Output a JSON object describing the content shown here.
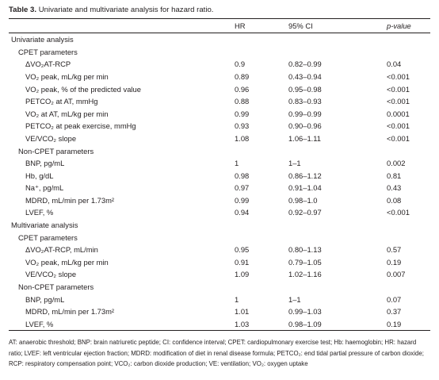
{
  "caption": {
    "label": "Table 3.",
    "text": "Univariate and multivariate analysis for hazard ratio."
  },
  "columns": [
    "",
    "HR",
    "95% CI",
    "p-value"
  ],
  "rows": [
    {
      "kind": "section",
      "name": "Univariate analysis"
    },
    {
      "kind": "group",
      "name": "CPET parameters"
    },
    {
      "kind": "item",
      "name": "ΔVO₂AT-RCP",
      "hr": "0.9",
      "ci": "0.82–0.99",
      "p": "0.04"
    },
    {
      "kind": "item",
      "name": "VO₂ peak, mL/kg per min",
      "hr": "0.89",
      "ci": "0.43–0.94",
      "p": "<0.001"
    },
    {
      "kind": "item",
      "name": "VO₂ peak, % of the predicted value",
      "hr": "0.96",
      "ci": "0.95–0.98",
      "p": "<0.001"
    },
    {
      "kind": "item",
      "name": "PETCO₂ at AT, mmHg",
      "hr": "0.88",
      "ci": "0.83–0.93",
      "p": "<0.001"
    },
    {
      "kind": "item",
      "name": "VO₂ at AT, mL/kg per min",
      "hr": "0.99",
      "ci": "0.99–0.99",
      "p": "0.0001"
    },
    {
      "kind": "item",
      "name": "PETCO₂ at peak exercise, mmHg",
      "hr": "0.93",
      "ci": "0.90–0.96",
      "p": "<0.001"
    },
    {
      "kind": "item",
      "name": "VE/VCO₂ slope",
      "hr": "1.08",
      "ci": "1.06–1.11",
      "p": "<0.001"
    },
    {
      "kind": "group",
      "name": "Non-CPET parameters"
    },
    {
      "kind": "item",
      "name": "BNP, pg/mL",
      "hr": "1",
      "ci": "1–1",
      "p": "0.002"
    },
    {
      "kind": "item",
      "name": "Hb, g/dL",
      "hr": "0.98",
      "ci": "0.86–1.12",
      "p": "0.81"
    },
    {
      "kind": "item",
      "name": "Na⁺, pg/mL",
      "hr": "0.97",
      "ci": "0.91–1.04",
      "p": "0.43"
    },
    {
      "kind": "item",
      "name": "MDRD, mL/min per 1.73m²",
      "hr": "0.99",
      "ci": "0.98–1.0",
      "p": "0.08"
    },
    {
      "kind": "item",
      "name": "LVEF, %",
      "hr": "0.94",
      "ci": "0.92–0.97",
      "p": "<0.001"
    },
    {
      "kind": "section",
      "name": "Multivariate analysis"
    },
    {
      "kind": "group",
      "name": "CPET parameters"
    },
    {
      "kind": "item",
      "name": "ΔVO₂AT-RCP, mL/min",
      "hr": "0.95",
      "ci": "0.80–1.13",
      "p": "0.57"
    },
    {
      "kind": "item",
      "name": "VO₂ peak, mL/kg per min",
      "hr": "0.91",
      "ci": "0.79–1.05",
      "p": "0.19"
    },
    {
      "kind": "item",
      "name": "VE/VCO₂ slope",
      "hr": "1.09",
      "ci": "1.02–1.16",
      "p": "0.007"
    },
    {
      "kind": "group",
      "name": "Non-CPET parameters"
    },
    {
      "kind": "item",
      "name": "BNP, pg/mL",
      "hr": "1",
      "ci": "1–1",
      "p": "0.07"
    },
    {
      "kind": "item",
      "name": "MDRD, mL/min per 1.73m²",
      "hr": "1.01",
      "ci": "0.99–1.03",
      "p": "0.37"
    },
    {
      "kind": "item",
      "name": "LVEF, %",
      "hr": "1.03",
      "ci": "0.98–1.09",
      "p": "0.19"
    }
  ],
  "footnote": "AT: anaerobic threshold; BNP: brain natriuretic peptide; CI: confidence interval; CPET: cardiopulmonary exercise test; Hb: haemoglobin; HR: hazard ratio; LVEF: left ventricular ejection fraction; MDRD: modification of diet in renal disease formula; PETCO₂: end tidal partial pressure of carbon dioxide; RCP: respiratory compensation point; VCO₂: carbon dioxide production; VE: ventilation; VO₂: oxygen uptake"
}
